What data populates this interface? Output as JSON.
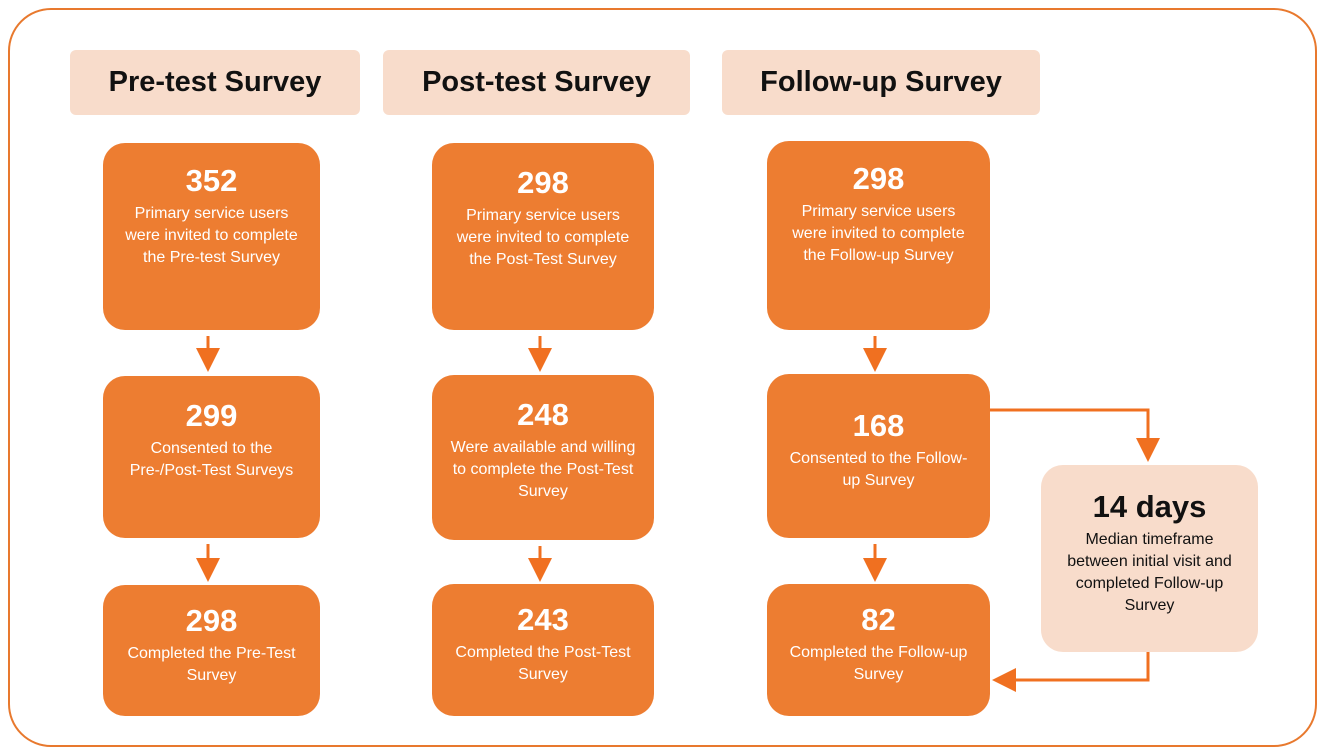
{
  "columns": [
    {
      "title": "Pre-test Survey",
      "boxes": [
        {
          "number": "352",
          "text": "Primary service users were invited to complete the Pre-test Survey"
        },
        {
          "number": "299",
          "text": "Consented to the Pre-/Post-Test Surveys"
        },
        {
          "number": "298",
          "text": "Completed the Pre-Test Survey"
        }
      ]
    },
    {
      "title": "Post-test Survey",
      "boxes": [
        {
          "number": "298",
          "text": "Primary service users were invited to complete the Post-Test Survey"
        },
        {
          "number": "248",
          "text": "Were available and willing to complete the Post-Test Survey"
        },
        {
          "number": "243",
          "text": "Completed the Post-Test Survey"
        }
      ]
    },
    {
      "title": "Follow-up Survey",
      "boxes": [
        {
          "number": "298",
          "text": "Primary service users were invited to complete the Follow-up Survey"
        },
        {
          "number": "168",
          "text": "Consented to the Follow-up Survey"
        },
        {
          "number": "82",
          "text": "Completed the Follow-up Survey"
        }
      ]
    }
  ],
  "note": {
    "number": "14 days",
    "text": "Median timeframe between initial visit and completed Follow-up Survey"
  }
}
